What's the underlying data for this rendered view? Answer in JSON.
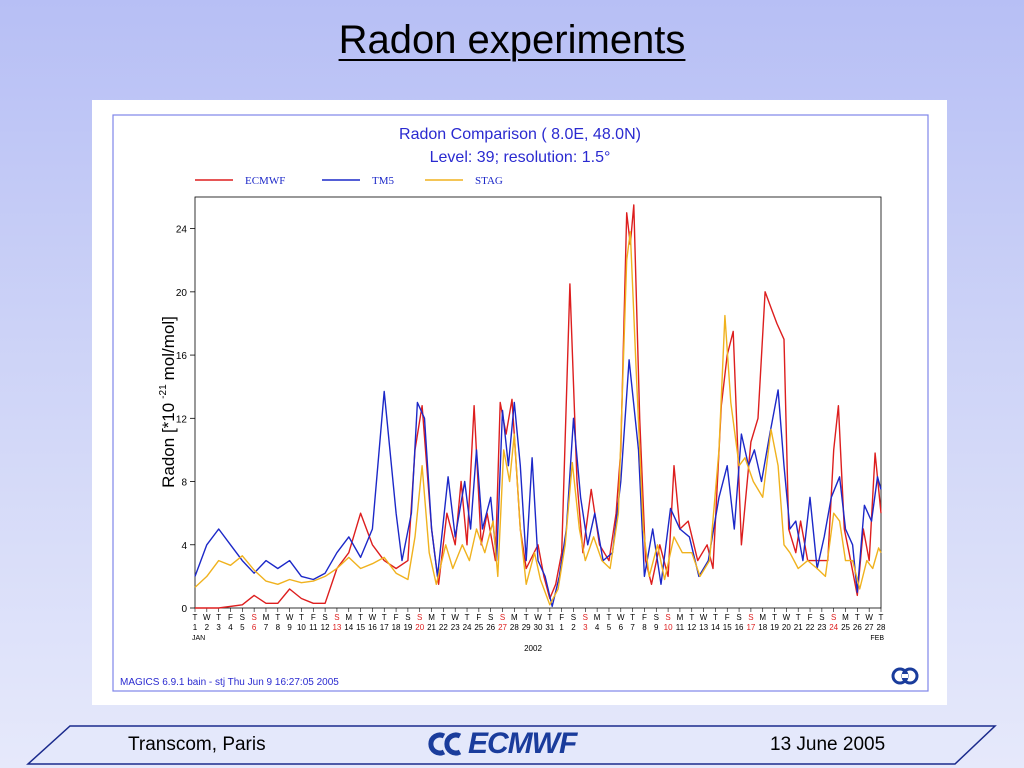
{
  "slide": {
    "title": "Radon experiments",
    "footer_left": "Transcom, Paris",
    "footer_logo_text": "ECMWF",
    "footer_right": "13 June 2005"
  },
  "colors": {
    "ECMWF": "#dd1e1e",
    "TM5": "#1c28c8",
    "STAG": "#f0b21e",
    "frame": "#7f86e8",
    "weekend": "#dd1e1e"
  },
  "chart_data": {
    "type": "line",
    "title": "Radon Comparison (  8.0E, 48.0N)",
    "subtitle": "Level: 39; resolution: 1.5°",
    "ylabel_parts": {
      "main": "Radon [*10",
      "exponent": "-21",
      "unit": "mol/mol]"
    },
    "xlabel": "2002",
    "xlim": [
      1,
      59
    ],
    "ylim": [
      0,
      26
    ],
    "yticks": [
      0,
      4,
      8,
      12,
      16,
      20,
      24
    ],
    "legend_position": "top",
    "month_labels": [
      {
        "day": 1,
        "label": "JAN"
      },
      {
        "day": 59,
        "label": "FEB"
      }
    ],
    "day_letters": [
      "T",
      "W",
      "T",
      "F",
      "S",
      "S",
      "M",
      "T",
      "W",
      "T",
      "F",
      "S",
      "S",
      "M",
      "T",
      "W",
      "T",
      "F",
      "S",
      "S",
      "M",
      "T",
      "W",
      "T",
      "F",
      "S",
      "S",
      "M",
      "T",
      "W",
      "T",
      "F",
      "S",
      "S",
      "M",
      "T",
      "W",
      "T",
      "F",
      "S",
      "S",
      "M",
      "T",
      "W",
      "T",
      "F",
      "S",
      "S",
      "M",
      "T",
      "W",
      "T",
      "F",
      "S",
      "S",
      "M",
      "T",
      "W",
      "T"
    ],
    "day_numbers": [
      "1",
      "2",
      "3",
      "4",
      "5",
      "6",
      "7",
      "8",
      "9",
      "10",
      "11",
      "12",
      "13",
      "14",
      "15",
      "16",
      "17",
      "18",
      "19",
      "20",
      "21",
      "22",
      "23",
      "24",
      "25",
      "26",
      "27",
      "28",
      "29",
      "30",
      "31",
      "1",
      "2",
      "3",
      "4",
      "5",
      "6",
      "7",
      "8",
      "9",
      "10",
      "11",
      "12",
      "13",
      "14",
      "15",
      "16",
      "17",
      "18",
      "19",
      "20",
      "21",
      "22",
      "23",
      "24",
      "25",
      "26",
      "27",
      "28"
    ],
    "weekend_days": [
      6,
      13,
      20,
      27,
      34,
      41,
      48,
      55
    ],
    "series": [
      {
        "name": "ECMWF",
        "points": [
          [
            1,
            0
          ],
          [
            3,
            0
          ],
          [
            5,
            0.2
          ],
          [
            6,
            0.8
          ],
          [
            7,
            0.3
          ],
          [
            8,
            0.3
          ],
          [
            9,
            1.2
          ],
          [
            10,
            0.6
          ],
          [
            11,
            0.3
          ],
          [
            12,
            0.3
          ],
          [
            13,
            2.5
          ],
          [
            14,
            3.5
          ],
          [
            15,
            6
          ],
          [
            16,
            4
          ],
          [
            17,
            3
          ],
          [
            18,
            2.5
          ],
          [
            19,
            3
          ],
          [
            19.6,
            10
          ],
          [
            20.2,
            12.8
          ],
          [
            21,
            5
          ],
          [
            21.6,
            1.5
          ],
          [
            22.3,
            6
          ],
          [
            23,
            4
          ],
          [
            23.5,
            8
          ],
          [
            24,
            4
          ],
          [
            24.6,
            12.8
          ],
          [
            25.2,
            4
          ],
          [
            25.7,
            6
          ],
          [
            26.4,
            3
          ],
          [
            26.8,
            13
          ],
          [
            27.3,
            11
          ],
          [
            27.8,
            13.2
          ],
          [
            28.5,
            5
          ],
          [
            29,
            2.5
          ],
          [
            30,
            4
          ],
          [
            30.5,
            2
          ],
          [
            31,
            0.6
          ],
          [
            31.5,
            1.5
          ],
          [
            32,
            3.5
          ],
          [
            32.7,
            20.5
          ],
          [
            33.3,
            8
          ],
          [
            33.8,
            3.5
          ],
          [
            34.5,
            7.5
          ],
          [
            35.2,
            4
          ],
          [
            36,
            3
          ],
          [
            36.6,
            6
          ],
          [
            37,
            10
          ],
          [
            37.5,
            25
          ],
          [
            37.8,
            23
          ],
          [
            38.1,
            25.5
          ],
          [
            38.6,
            12
          ],
          [
            39.1,
            3
          ],
          [
            39.6,
            1.5
          ],
          [
            40.3,
            4
          ],
          [
            41,
            2
          ],
          [
            41.5,
            9
          ],
          [
            42,
            5
          ],
          [
            42.7,
            5.5
          ],
          [
            43.5,
            3
          ],
          [
            44.3,
            4
          ],
          [
            44.8,
            2.5
          ],
          [
            45.5,
            12.8
          ],
          [
            46,
            16
          ],
          [
            46.5,
            17.5
          ],
          [
            47.2,
            4
          ],
          [
            48,
            10.5
          ],
          [
            48.6,
            12
          ],
          [
            49.2,
            20
          ],
          [
            49.7,
            19
          ],
          [
            50.2,
            18
          ],
          [
            50.8,
            17
          ],
          [
            51.2,
            5
          ],
          [
            51.8,
            3.5
          ],
          [
            52.2,
            5.5
          ],
          [
            52.8,
            3
          ],
          [
            53.6,
            3
          ],
          [
            54.5,
            3
          ],
          [
            55,
            10
          ],
          [
            55.4,
            12.8
          ],
          [
            55.9,
            5
          ],
          [
            56.3,
            3.5
          ],
          [
            57,
            0.8
          ],
          [
            57.5,
            5
          ],
          [
            58,
            3
          ],
          [
            58.5,
            9.8
          ],
          [
            59,
            6
          ]
        ]
      },
      {
        "name": "TM5",
        "points": [
          [
            1,
            2
          ],
          [
            2,
            4
          ],
          [
            3,
            5
          ],
          [
            4,
            4
          ],
          [
            5,
            3
          ],
          [
            6,
            2.2
          ],
          [
            7,
            3
          ],
          [
            8,
            2.5
          ],
          [
            9,
            3
          ],
          [
            10,
            2
          ],
          [
            11,
            1.8
          ],
          [
            12,
            2.2
          ],
          [
            13,
            3.5
          ],
          [
            14,
            4.5
          ],
          [
            15,
            3.2
          ],
          [
            16,
            5
          ],
          [
            17,
            13.7
          ],
          [
            18,
            6
          ],
          [
            18.5,
            3
          ],
          [
            19.3,
            6
          ],
          [
            19.8,
            13
          ],
          [
            20.4,
            12
          ],
          [
            21,
            5
          ],
          [
            21.5,
            2
          ],
          [
            22.4,
            8.3
          ],
          [
            23,
            4.5
          ],
          [
            23.8,
            8
          ],
          [
            24.3,
            5
          ],
          [
            24.8,
            10
          ],
          [
            25.3,
            5
          ],
          [
            26,
            7
          ],
          [
            26.5,
            3
          ],
          [
            27,
            12.5
          ],
          [
            27.5,
            9
          ],
          [
            28,
            13
          ],
          [
            28.5,
            9
          ],
          [
            29,
            3
          ],
          [
            29.5,
            9.5
          ],
          [
            30,
            3
          ],
          [
            30.6,
            2
          ],
          [
            31.2,
            0.1
          ],
          [
            31.8,
            2
          ],
          [
            32.4,
            5
          ],
          [
            33,
            12
          ],
          [
            33.6,
            7
          ],
          [
            34.2,
            4
          ],
          [
            34.8,
            6
          ],
          [
            35.5,
            3
          ],
          [
            36.3,
            3.5
          ],
          [
            37,
            8
          ],
          [
            37.7,
            15.7
          ],
          [
            38.5,
            10
          ],
          [
            39,
            2
          ],
          [
            39.7,
            5
          ],
          [
            40.4,
            1.5
          ],
          [
            41.2,
            6.3
          ],
          [
            42,
            5
          ],
          [
            42.8,
            4.5
          ],
          [
            43.6,
            2
          ],
          [
            44.4,
            3
          ],
          [
            45.3,
            7
          ],
          [
            46,
            9
          ],
          [
            46.6,
            5
          ],
          [
            47.2,
            11
          ],
          [
            47.8,
            9
          ],
          [
            48.3,
            10
          ],
          [
            48.9,
            8
          ],
          [
            49.6,
            11
          ],
          [
            50.3,
            13.8
          ],
          [
            50.8,
            9
          ],
          [
            51.3,
            5
          ],
          [
            51.8,
            5.5
          ],
          [
            52.4,
            3
          ],
          [
            53,
            7
          ],
          [
            53.6,
            2.5
          ],
          [
            54.2,
            4.5
          ],
          [
            54.8,
            7
          ],
          [
            55.5,
            8.3
          ],
          [
            56,
            5
          ],
          [
            56.6,
            4
          ],
          [
            57,
            1
          ],
          [
            57.6,
            6.5
          ],
          [
            58.2,
            5.5
          ],
          [
            58.7,
            8.3
          ],
          [
            59,
            7.5
          ]
        ]
      },
      {
        "name": "STAG",
        "points": [
          [
            1,
            1.3
          ],
          [
            2,
            2
          ],
          [
            3,
            3
          ],
          [
            4,
            2.7
          ],
          [
            5,
            3.3
          ],
          [
            6,
            2.4
          ],
          [
            7,
            1.7
          ],
          [
            8,
            1.5
          ],
          [
            9,
            1.8
          ],
          [
            10,
            1.6
          ],
          [
            11,
            1.7
          ],
          [
            12,
            2
          ],
          [
            13,
            2.5
          ],
          [
            14,
            3.2
          ],
          [
            15,
            2.5
          ],
          [
            16,
            2.8
          ],
          [
            17,
            3.2
          ],
          [
            18,
            2.2
          ],
          [
            19,
            1.8
          ],
          [
            19.6,
            4.5
          ],
          [
            20.2,
            9
          ],
          [
            20.8,
            3.5
          ],
          [
            21.4,
            1.5
          ],
          [
            22.2,
            4
          ],
          [
            22.8,
            2.5
          ],
          [
            23.6,
            4
          ],
          [
            24.2,
            3
          ],
          [
            24.8,
            5
          ],
          [
            25.5,
            3.5
          ],
          [
            26.2,
            5.5
          ],
          [
            26.6,
            2
          ],
          [
            27.1,
            10
          ],
          [
            27.6,
            8
          ],
          [
            28,
            11
          ],
          [
            28.5,
            5
          ],
          [
            29,
            1.5
          ],
          [
            29.7,
            3.5
          ],
          [
            30.2,
            1.8
          ],
          [
            31,
            0.2
          ],
          [
            31.7,
            1.2
          ],
          [
            32.3,
            4
          ],
          [
            32.9,
            9.2
          ],
          [
            33.5,
            5
          ],
          [
            34,
            3
          ],
          [
            34.7,
            4.5
          ],
          [
            35.4,
            3
          ],
          [
            36.1,
            2.5
          ],
          [
            36.8,
            6
          ],
          [
            37.5,
            22
          ],
          [
            37.8,
            23.8
          ],
          [
            38.3,
            15
          ],
          [
            38.9,
            5
          ],
          [
            39.4,
            2
          ],
          [
            40.1,
            4
          ],
          [
            40.7,
            1.8
          ],
          [
            41.5,
            4.5
          ],
          [
            42.2,
            3.5
          ],
          [
            43,
            3.5
          ],
          [
            43.7,
            2
          ],
          [
            44.5,
            3
          ],
          [
            45.3,
            10
          ],
          [
            45.8,
            18.5
          ],
          [
            46.3,
            13
          ],
          [
            47,
            9
          ],
          [
            47.5,
            9.5
          ],
          [
            48.2,
            8
          ],
          [
            49,
            7
          ],
          [
            49.7,
            11.3
          ],
          [
            50.3,
            9
          ],
          [
            50.8,
            4
          ],
          [
            51.3,
            3.5
          ],
          [
            52,
            2.5
          ],
          [
            52.8,
            3
          ],
          [
            53.6,
            2.5
          ],
          [
            54.3,
            2
          ],
          [
            55,
            6
          ],
          [
            55.5,
            5.5
          ],
          [
            56,
            3
          ],
          [
            56.6,
            3
          ],
          [
            57.2,
            1.2
          ],
          [
            57.8,
            3
          ],
          [
            58.3,
            2.5
          ],
          [
            58.8,
            3.8
          ],
          [
            59,
            3.5
          ]
        ]
      }
    ]
  },
  "caption": "MAGICS 6.9.1 bain - stj Thu Jun  9 16:27:05 2005"
}
